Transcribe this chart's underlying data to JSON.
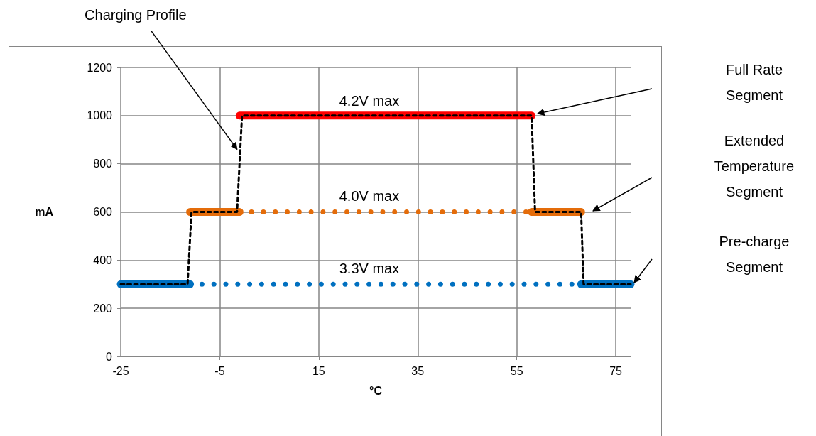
{
  "chart_data": {
    "type": "line",
    "xlabel": "°C",
    "ylabel": "mA",
    "xlim": [
      -25,
      78
    ],
    "xticks": [
      -25,
      -5,
      15,
      35,
      55,
      75
    ],
    "ylim": [
      0,
      1200
    ],
    "yticks": [
      0,
      200,
      400,
      600,
      800,
      1000,
      1200
    ],
    "grid": true,
    "marker": "none",
    "series": [
      {
        "color": "#0070c0",
        "line_style": "dotted",
        "x": [
          -11,
          68
        ],
        "values": [
          300,
          300
        ]
      },
      {
        "color": "#e46c0a",
        "line_style": "dotted",
        "x": [
          -1,
          58
        ],
        "values": [
          600,
          600
        ]
      },
      {
        "color": "#0070c0",
        "line_style": "solid",
        "x": [
          -25,
          -11,
          28,
          68,
          78
        ],
        "values": [
          300,
          300,
          null,
          300,
          300
        ]
      },
      {
        "color": "#e46c0a",
        "line_style": "solid",
        "x": [
          -11,
          -1,
          28,
          58,
          68
        ],
        "values": [
          600,
          600,
          null,
          600,
          600
        ]
      },
      {
        "color": "#ff0000",
        "line_style": "solid",
        "x": [
          -1,
          58
        ],
        "values": [
          1000,
          1000
        ]
      },
      {
        "color": "#000000",
        "line_style": "dashed",
        "x": [
          -25,
          -11.5,
          -10.7,
          -1.5,
          -0.5,
          58,
          58.7,
          68,
          68.5,
          78
        ],
        "values": [
          300,
          300,
          600,
          600,
          1000,
          1000,
          600,
          600,
          300,
          300
        ]
      }
    ],
    "annotations": [
      {
        "text": "Charging Profile",
        "x": -1.5,
        "y": 860
      },
      "Full Rate Segment",
      "Extended Temperature Segment",
      "Pre-charge Segment",
      "4.2V max",
      "4.0V max",
      "3.3V max"
    ]
  }
}
